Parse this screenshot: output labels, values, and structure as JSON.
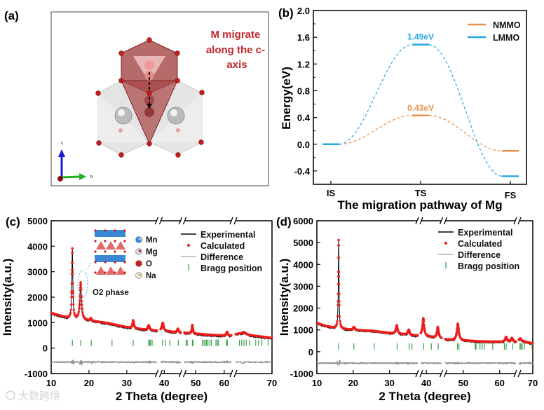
{
  "panel_a": {
    "label": "(a)",
    "caption": "M migrate along the c-axis",
    "caption_lines": [
      "M migrate",
      "along the c-",
      "axis"
    ],
    "axis_c": "c",
    "axis_b": "b",
    "caption_color": "#c0282d"
  },
  "watermark": "大数跨境",
  "chart_data": [
    {
      "id": "b",
      "type": "line",
      "panel_label": "(b)",
      "title": "",
      "xlabel": "The migration pathway of Mg",
      "ylabel": "Energy(eV)",
      "categories": [
        "IS",
        "TS",
        "FS"
      ],
      "ylim": [
        -0.6,
        2.0
      ],
      "yticks": [
        "2.0",
        "1.6",
        "1.2",
        "0.8",
        "0.4",
        "0.0",
        "-0.4"
      ],
      "legend_position": "top-right",
      "series": [
        {
          "name": "NMMO",
          "values": [
            0.0,
            0.43,
            -0.1
          ],
          "color": "#e8914a",
          "annotation": "0.43eV"
        },
        {
          "name": "LMMO",
          "values": [
            0.0,
            1.49,
            -0.48
          ],
          "color": "#29a8e6",
          "annotation": "1.49eV"
        }
      ]
    },
    {
      "id": "c",
      "type": "line",
      "panel_label": "(c)",
      "xlabel": "2 Theta (degree)",
      "ylabel": "Intensity(a.u.)",
      "xlim": [
        10,
        70
      ],
      "ylim": [
        -1000,
        5000
      ],
      "xticks": [
        "10",
        "20",
        "30",
        "40",
        "50",
        "60",
        "70"
      ],
      "yticks": [
        "5000",
        "4000",
        "3000",
        "2000",
        "1000",
        "0",
        "-1000"
      ],
      "axis_breaks": [
        [
          38,
          39
        ],
        [
          44.5,
          46
        ],
        [
          62.5,
          63.5
        ]
      ],
      "background": [
        [
          10,
          1380
        ],
        [
          15,
          1150
        ],
        [
          20,
          1080
        ],
        [
          25,
          980
        ],
        [
          30,
          820
        ],
        [
          35,
          720
        ],
        [
          38,
          680
        ],
        [
          39,
          700
        ],
        [
          44,
          600
        ],
        [
          46,
          600
        ],
        [
          55,
          520
        ],
        [
          62,
          480
        ],
        [
          64,
          560
        ],
        [
          70,
          400
        ]
      ],
      "peaks": [
        [
          15.6,
          2750,
          0.15
        ],
        [
          17.8,
          1450,
          0.25
        ],
        [
          20.5,
          90,
          0.2
        ],
        [
          31.7,
          300,
          0.2
        ],
        [
          35.8,
          180,
          0.25
        ],
        [
          39.6,
          300,
          0.25
        ],
        [
          43.7,
          150,
          0.25
        ],
        [
          48.8,
          330,
          0.2
        ],
        [
          61,
          150,
          0.3
        ],
        [
          65,
          90,
          0.4
        ]
      ],
      "bragg_positions": [
        15.6,
        17.8,
        20.6,
        26.1,
        31.7,
        35.8,
        36.0,
        36.3,
        36.7,
        39.5,
        40.3,
        41.5,
        43.8,
        46.6,
        47.0,
        48.8,
        49.0,
        52.3,
        52.9,
        53.4,
        53.8,
        54.3,
        55.0,
        55.5,
        57.1,
        57.6,
        58.0,
        60.8,
        61.1,
        64.2,
        64.6,
        65.0,
        65.4,
        66.0,
        67.1,
        67.6,
        68.2,
        69.3
      ],
      "difference_offset": -550,
      "legend": [
        "Experimental",
        "Calculated",
        "Difference",
        "Bragg position"
      ],
      "legend_position": "top-right",
      "inset": {
        "elements": [
          "Mn",
          "Mg",
          "O",
          "Na"
        ],
        "annotation": "O2 phase"
      },
      "colors": {
        "experimental": "#000000",
        "calculated": "#ee1c1c",
        "difference": "#888888",
        "bragg": "#2a9a3a"
      }
    },
    {
      "id": "d",
      "type": "line",
      "panel_label": "(d)",
      "xlabel": "2 Theta (degree)",
      "ylabel": "Intensity(a.u.)",
      "xlim": [
        10,
        70
      ],
      "ylim": [
        -1000,
        6000
      ],
      "xticks": [
        "10",
        "20",
        "30",
        "40",
        "50",
        "60",
        "70"
      ],
      "yticks": [
        "6000",
        "5000",
        "4000",
        "3000",
        "2000",
        "1000",
        "0",
        "-1000"
      ],
      "axis_breaks": [
        [
          37.8,
          38.5
        ],
        [
          44,
          45
        ],
        [
          64.5,
          65.5
        ]
      ],
      "background": [
        [
          10,
          1320
        ],
        [
          12,
          1200
        ],
        [
          15,
          1080
        ],
        [
          20,
          1000
        ],
        [
          25,
          960
        ],
        [
          30,
          860
        ],
        [
          35,
          780
        ],
        [
          37.8,
          720
        ],
        [
          38.5,
          750
        ],
        [
          44,
          600
        ],
        [
          45,
          560
        ],
        [
          55,
          470
        ],
        [
          64.5,
          440
        ],
        [
          65.5,
          520
        ],
        [
          70,
          380
        ]
      ],
      "peaks": [
        [
          16.0,
          4050,
          0.12
        ],
        [
          20.2,
          130,
          0.25
        ],
        [
          32.0,
          380,
          0.25
        ],
        [
          35.3,
          230,
          0.25
        ],
        [
          39.2,
          800,
          0.25
        ],
        [
          43.0,
          500,
          0.25
        ],
        [
          48.5,
          750,
          0.3
        ],
        [
          61.8,
          220,
          0.3
        ],
        [
          63.4,
          180,
          0.3
        ],
        [
          66.0,
          100,
          0.3
        ]
      ],
      "bragg_positions": [
        16.0,
        20.2,
        25.8,
        32.1,
        35.4,
        36.2,
        39.3,
        41.3,
        43.1,
        48.4,
        48.8,
        53.3,
        53.5,
        54.6,
        55.2,
        55.8,
        58.1,
        61.3,
        61.8,
        63.6,
        65.9,
        66.2,
        66.6,
        67.3,
        69.8
      ],
      "difference_offset": -520,
      "legend": [
        "Experimental",
        "Calculated",
        "Difference",
        "Bragg position"
      ],
      "legend_position": "top-right",
      "colors": {
        "experimental": "#000000",
        "calculated": "#ee1c1c",
        "difference": "#888888",
        "bragg": "#2a9a3a"
      }
    }
  ]
}
